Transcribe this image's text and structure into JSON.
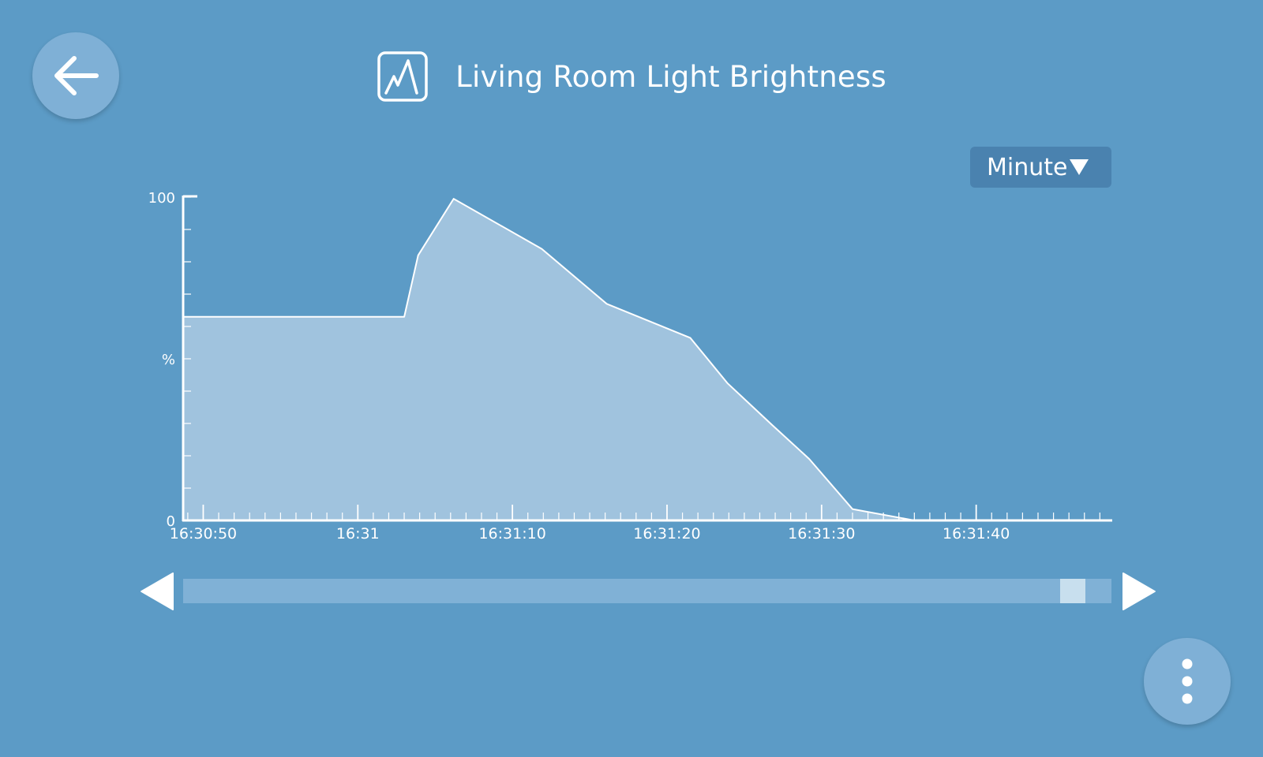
{
  "header": {
    "title": "Living Room Light Brightness",
    "icon": "chart-icon"
  },
  "navigation": {
    "back_icon": "arrow-left-icon"
  },
  "timescale": {
    "selected": "Minute",
    "caret_icon": "caret-down-icon"
  },
  "menu": {
    "icon": "more-vertical-icon"
  },
  "scrollbar": {
    "left_icon": "triangle-left-icon",
    "right_icon": "triangle-right-icon",
    "position": 0.97
  },
  "colors": {
    "background": "#5c9bc6",
    "area_fill": "#a0c3de",
    "line": "#ffffff"
  },
  "chart_data": {
    "type": "area",
    "ylabel": "%",
    "ylim": [
      0,
      100
    ],
    "y_ticks": [
      "100",
      "%",
      "0"
    ],
    "xlim": [
      "16:30:48.7",
      "16:31:48.8"
    ],
    "x_tick_labels": [
      "16:30:50",
      "16:31",
      "16:31:10",
      "16:31:20",
      "16:31:30",
      "16:31:40"
    ],
    "x": [
      "16:30:48.7",
      "16:31:03.0",
      "16:31:03.9",
      "16:31:06.2",
      "16:31:11.9",
      "16:31:16.1",
      "16:31:21.5",
      "16:31:23.9",
      "16:31:26.8",
      "16:31:29.2",
      "16:31:32.0",
      "16:31:36.0",
      "16:31:48.8"
    ],
    "series": [
      {
        "values": [
          63,
          63,
          82,
          99.5,
          84,
          67,
          56.5,
          42.5,
          29.5,
          19,
          3.5,
          0,
          0
        ]
      }
    ]
  }
}
